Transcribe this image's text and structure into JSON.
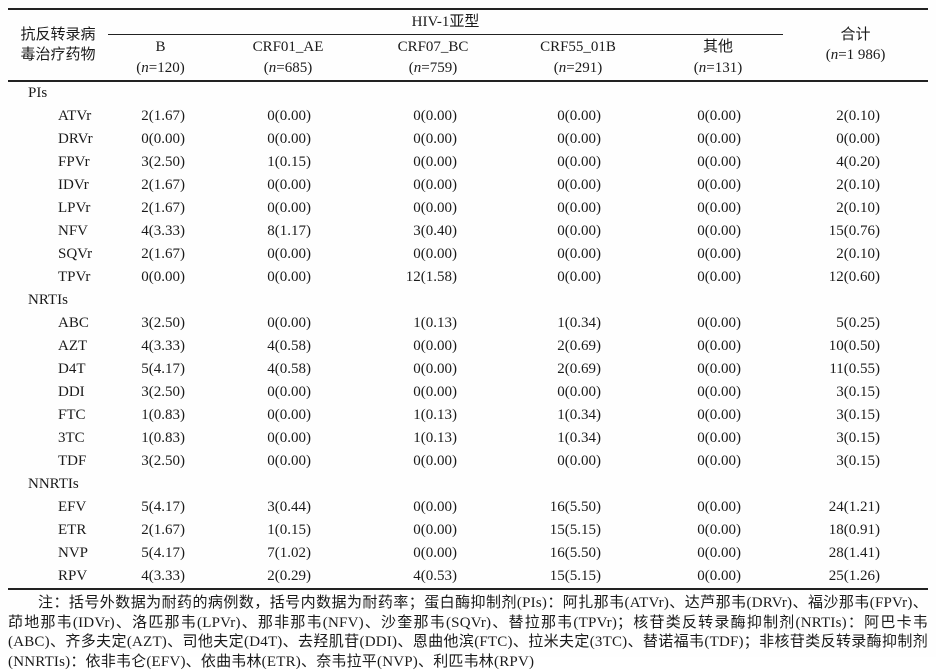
{
  "table": {
    "stub_header_line1": "抗反转录病",
    "stub_header_line2": "毒治疗药物",
    "spanner_label": "HIV-1亚型",
    "n_symbol": "n",
    "columns": [
      {
        "name": "B",
        "n": "120"
      },
      {
        "name": "CRF01_AE",
        "n": "685"
      },
      {
        "name": "CRF07_BC",
        "n": "759"
      },
      {
        "name": "CRF55_01B",
        "n": "291"
      },
      {
        "name": "其他",
        "n": "131"
      }
    ],
    "total_column": {
      "name": "合计",
      "n": "1 986"
    },
    "groups": [
      {
        "label": "PIs",
        "rows": [
          {
            "drug": "ATVr",
            "values": [
              "2(1.67)",
              "0(0.00)",
              "0(0.00)",
              "0(0.00)",
              "0(0.00)",
              "2(0.10)"
            ]
          },
          {
            "drug": "DRVr",
            "values": [
              "0(0.00)",
              "0(0.00)",
              "0(0.00)",
              "0(0.00)",
              "0(0.00)",
              "0(0.00)"
            ]
          },
          {
            "drug": "FPVr",
            "values": [
              "3(2.50)",
              "1(0.15)",
              "0(0.00)",
              "0(0.00)",
              "0(0.00)",
              "4(0.20)"
            ]
          },
          {
            "drug": "IDVr",
            "values": [
              "2(1.67)",
              "0(0.00)",
              "0(0.00)",
              "0(0.00)",
              "0(0.00)",
              "2(0.10)"
            ]
          },
          {
            "drug": "LPVr",
            "values": [
              "2(1.67)",
              "0(0.00)",
              "0(0.00)",
              "0(0.00)",
              "0(0.00)",
              "2(0.10)"
            ]
          },
          {
            "drug": "NFV",
            "values": [
              "4(3.33)",
              "8(1.17)",
              "3(0.40)",
              "0(0.00)",
              "0(0.00)",
              "15(0.76)"
            ]
          },
          {
            "drug": "SQVr",
            "values": [
              "2(1.67)",
              "0(0.00)",
              "0(0.00)",
              "0(0.00)",
              "0(0.00)",
              "2(0.10)"
            ]
          },
          {
            "drug": "TPVr",
            "values": [
              "0(0.00)",
              "0(0.00)",
              "12(1.58)",
              "0(0.00)",
              "0(0.00)",
              "12(0.60)"
            ]
          }
        ]
      },
      {
        "label": "NRTIs",
        "rows": [
          {
            "drug": "ABC",
            "values": [
              "3(2.50)",
              "0(0.00)",
              "1(0.13)",
              "1(0.34)",
              "0(0.00)",
              "5(0.25)"
            ]
          },
          {
            "drug": "AZT",
            "values": [
              "4(3.33)",
              "4(0.58)",
              "0(0.00)",
              "2(0.69)",
              "0(0.00)",
              "10(0.50)"
            ]
          },
          {
            "drug": "D4T",
            "values": [
              "5(4.17)",
              "4(0.58)",
              "0(0.00)",
              "2(0.69)",
              "0(0.00)",
              "11(0.55)"
            ]
          },
          {
            "drug": "DDI",
            "values": [
              "3(2.50)",
              "0(0.00)",
              "0(0.00)",
              "0(0.00)",
              "0(0.00)",
              "3(0.15)"
            ]
          },
          {
            "drug": "FTC",
            "values": [
              "1(0.83)",
              "0(0.00)",
              "1(0.13)",
              "1(0.34)",
              "0(0.00)",
              "3(0.15)"
            ]
          },
          {
            "drug": "3TC",
            "values": [
              "1(0.83)",
              "0(0.00)",
              "1(0.13)",
              "1(0.34)",
              "0(0.00)",
              "3(0.15)"
            ]
          },
          {
            "drug": "TDF",
            "values": [
              "3(2.50)",
              "0(0.00)",
              "0(0.00)",
              "0(0.00)",
              "0(0.00)",
              "3(0.15)"
            ]
          }
        ]
      },
      {
        "label": "NNRTIs",
        "rows": [
          {
            "drug": "EFV",
            "values": [
              "5(4.17)",
              "3(0.44)",
              "0(0.00)",
              "16(5.50)",
              "0(0.00)",
              "24(1.21)"
            ]
          },
          {
            "drug": "ETR",
            "values": [
              "2(1.67)",
              "1(0.15)",
              "0(0.00)",
              "15(5.15)",
              "0(0.00)",
              "18(0.91)"
            ]
          },
          {
            "drug": "NVP",
            "values": [
              "5(4.17)",
              "7(1.02)",
              "0(0.00)",
              "16(5.50)",
              "0(0.00)",
              "28(1.41)"
            ]
          },
          {
            "drug": "RPV",
            "values": [
              "4(3.33)",
              "2(0.29)",
              "4(0.53)",
              "15(5.15)",
              "0(0.00)",
              "25(1.26)"
            ]
          }
        ]
      }
    ]
  },
  "note": "注：括号外数据为耐药的病例数，括号内数据为耐药率；蛋白酶抑制剂(PIs)：阿扎那韦(ATVr)、达芦那韦(DRVr)、福沙那韦(FPVr)、茚地那韦(IDVr)、洛匹那韦(LPVr)、那非那韦(NFV)、沙奎那韦(SQVr)、替拉那韦(TPVr)；核苷类反转录酶抑制剂(NRTIs)：阿巴卡韦(ABC)、齐多夫定(AZT)、司他夫定(D4T)、去羟肌苷(DDI)、恩曲他滨(FTC)、拉米夫定(3TC)、替诺福韦(TDF)；非核苷类反转录酶抑制剂(NNRTIs)：依非韦仑(EFV)、依曲韦林(ETR)、奈韦拉平(NVP)、利匹韦林(RPV)"
}
